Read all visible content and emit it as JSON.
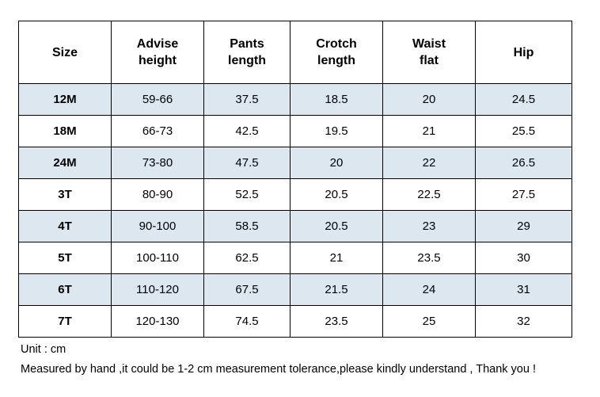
{
  "table": {
    "headers": [
      "Size",
      "Advise\nheight",
      "Pants\nlength",
      "Crotch\nlength",
      "Waist\nflat",
      "Hip"
    ],
    "rows": [
      [
        "12M",
        "59-66",
        "37.5",
        "18.5",
        "20",
        "24.5"
      ],
      [
        "18M",
        "66-73",
        "42.5",
        "19.5",
        "21",
        "25.5"
      ],
      [
        "24M",
        "73-80",
        "47.5",
        "20",
        "22",
        "26.5"
      ],
      [
        "3T",
        "80-90",
        "52.5",
        "20.5",
        "22.5",
        "27.5"
      ],
      [
        "4T",
        "90-100",
        "58.5",
        "20.5",
        "23",
        "29"
      ],
      [
        "5T",
        "100-110",
        "62.5",
        "21",
        "23.5",
        "30"
      ],
      [
        "6T",
        "110-120",
        "67.5",
        "21.5",
        "24",
        "31"
      ],
      [
        "7T",
        "120-130",
        "74.5",
        "23.5",
        "25",
        "32"
      ]
    ]
  },
  "notes": {
    "unit": "Unit : cm",
    "disclaimer": "Measured by hand ,it could be 1-2 cm measurement tolerance,please kindly understand , Thank you !"
  },
  "colors": {
    "shaded_row": "#dde7ef",
    "border": "#000000"
  }
}
